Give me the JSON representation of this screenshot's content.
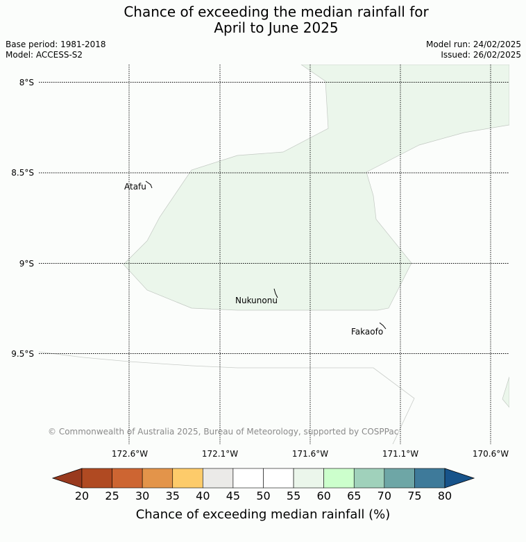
{
  "title": {
    "line1": "Chance of exceeding the median rainfall for",
    "line2": "April to June 2025"
  },
  "meta": {
    "base_period": "Base period: 1981-2018",
    "model": "Model: ACCESS-S2",
    "model_run": "Model run: 24/02/2025",
    "issued": "Issued: 26/02/2025"
  },
  "map": {
    "lat_labels": [
      "8°S",
      "8.5°S",
      "9°S",
      "9.5°S"
    ],
    "lon_labels": [
      "172.6°W",
      "172.1°W",
      "171.6°W",
      "171.1°W",
      "170.6°W"
    ],
    "places": [
      "Atafu",
      "Nukunonu",
      "Fakaofo"
    ],
    "copyright": "© Commonwealth of Australia 2025, Bureau of Meteorology, supported by COSPPac",
    "shaded_region_color": "#ebf6eb",
    "shaded_region_category": "55-60"
  },
  "colorbar": {
    "title": "Chance of exceeding median rainfall (%)",
    "ticks": [
      "20",
      "25",
      "30",
      "35",
      "40",
      "45",
      "50",
      "55",
      "60",
      "65",
      "70",
      "75",
      "80"
    ],
    "low_extend_color": "#993a1e",
    "high_extend_color": "#17538a",
    "colors": [
      "#b04a22",
      "#cd6532",
      "#e3944a",
      "#fdcb6a",
      "#ebeae8",
      "#ffffff",
      "#ffffff",
      "#ebf6eb",
      "#ccffcc",
      "#a0d1bb",
      "#6ea6a6",
      "#3e7a9a"
    ]
  }
}
